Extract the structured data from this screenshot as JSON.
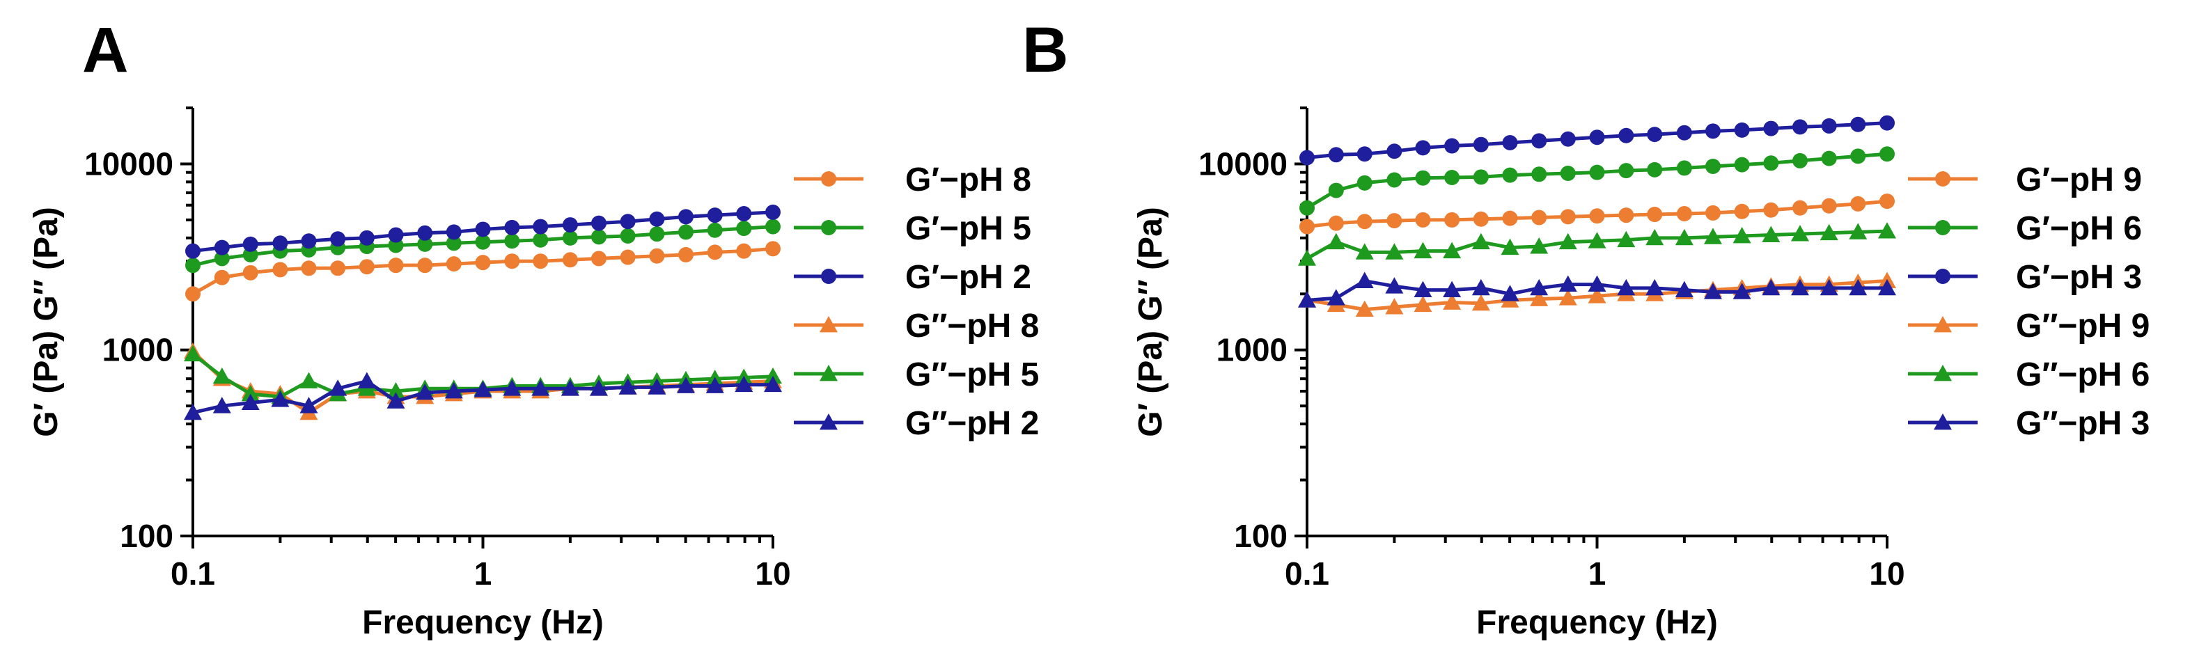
{
  "colors": {
    "orange": "#ED7D31",
    "green": "#1E9B1E",
    "navy": "#1F1F9E"
  },
  "chart_data": [
    {
      "panel": "A",
      "type": "line",
      "xlabel": "Frequency (Hz)",
      "ylabel": "G′ (Pa) G″ (Pa)",
      "xscale": "log",
      "yscale": "log",
      "xlim": [
        0.1,
        10
      ],
      "ylim": [
        100,
        20000
      ],
      "xticks": [
        {
          "v": 0.1,
          "label": "0.1"
        },
        {
          "v": 1,
          "label": "1"
        },
        {
          "v": 10,
          "label": "10"
        }
      ],
      "yticks": [
        {
          "v": 100,
          "label": "100"
        },
        {
          "v": 1000,
          "label": "1000"
        },
        {
          "v": 10000,
          "label": "10000"
        }
      ],
      "legend_position": "right",
      "x": [
        0.1,
        0.126,
        0.158,
        0.2,
        0.251,
        0.316,
        0.398,
        0.501,
        0.631,
        0.794,
        1,
        1.26,
        1.58,
        2,
        2.51,
        3.16,
        3.98,
        5.01,
        6.31,
        7.94,
        10
      ],
      "series": [
        {
          "name": "G′−pH 8",
          "color": "orange",
          "marker": "circle",
          "values": [
            2000,
            2450,
            2600,
            2700,
            2750,
            2750,
            2800,
            2850,
            2850,
            2900,
            2950,
            3000,
            3000,
            3050,
            3100,
            3150,
            3200,
            3250,
            3350,
            3400,
            3500
          ]
        },
        {
          "name": "G′−pH 5",
          "color": "green",
          "marker": "circle",
          "values": [
            2850,
            3100,
            3250,
            3400,
            3450,
            3550,
            3600,
            3650,
            3700,
            3750,
            3800,
            3850,
            3900,
            4000,
            4050,
            4100,
            4200,
            4300,
            4400,
            4500,
            4600
          ]
        },
        {
          "name": "G′−pH 2",
          "color": "navy",
          "marker": "circle",
          "values": [
            3400,
            3550,
            3700,
            3750,
            3850,
            3950,
            4000,
            4150,
            4250,
            4300,
            4450,
            4550,
            4600,
            4700,
            4800,
            4900,
            5050,
            5200,
            5300,
            5400,
            5500
          ]
        },
        {
          "name": "G″−pH 8",
          "color": "orange",
          "marker": "triangle",
          "values": [
            980,
            700,
            600,
            580,
            460,
            580,
            600,
            560,
            560,
            580,
            600,
            600,
            600,
            620,
            620,
            630,
            640,
            650,
            660,
            670,
            680
          ]
        },
        {
          "name": "G″−pH 5",
          "color": "green",
          "marker": "triangle",
          "values": [
            950,
            720,
            580,
            560,
            680,
            580,
            620,
            600,
            620,
            620,
            620,
            640,
            640,
            640,
            660,
            670,
            680,
            690,
            700,
            710,
            720
          ]
        },
        {
          "name": "G″−pH 2",
          "color": "navy",
          "marker": "triangle",
          "values": [
            460,
            500,
            520,
            540,
            500,
            620,
            680,
            530,
            590,
            600,
            610,
            620,
            620,
            620,
            620,
            630,
            630,
            640,
            640,
            650,
            650
          ]
        }
      ]
    },
    {
      "panel": "B",
      "type": "line",
      "xlabel": "Frequency (Hz)",
      "ylabel": "G′ (Pa) G″ (Pa)",
      "xscale": "log",
      "yscale": "log",
      "xlim": [
        0.1,
        10
      ],
      "ylim": [
        100,
        20000
      ],
      "xticks": [
        {
          "v": 0.1,
          "label": "0.1"
        },
        {
          "v": 1,
          "label": "1"
        },
        {
          "v": 10,
          "label": "10"
        }
      ],
      "yticks": [
        {
          "v": 100,
          "label": "100"
        },
        {
          "v": 1000,
          "label": "1000"
        },
        {
          "v": 10000,
          "label": "10000"
        }
      ],
      "legend_position": "right",
      "x": [
        0.1,
        0.126,
        0.158,
        0.2,
        0.251,
        0.316,
        0.398,
        0.501,
        0.631,
        0.794,
        1,
        1.26,
        1.58,
        2,
        2.51,
        3.16,
        3.98,
        5.01,
        6.31,
        7.94,
        10
      ],
      "series": [
        {
          "name": "G′−pH 9",
          "color": "orange",
          "marker": "circle",
          "values": [
            4600,
            4800,
            4900,
            4950,
            5000,
            5000,
            5050,
            5100,
            5150,
            5200,
            5250,
            5300,
            5350,
            5400,
            5450,
            5550,
            5650,
            5800,
            5950,
            6100,
            6300
          ]
        },
        {
          "name": "G′−pH 6",
          "color": "green",
          "marker": "circle",
          "values": [
            5800,
            7200,
            7900,
            8200,
            8400,
            8450,
            8500,
            8700,
            8800,
            8900,
            9000,
            9200,
            9300,
            9500,
            9700,
            9900,
            10100,
            10400,
            10700,
            11000,
            11300
          ]
        },
        {
          "name": "G′−pH 3",
          "color": "navy",
          "marker": "circle",
          "values": [
            10800,
            11200,
            11300,
            11700,
            12200,
            12500,
            12700,
            13000,
            13300,
            13600,
            13900,
            14200,
            14400,
            14700,
            15000,
            15200,
            15500,
            15800,
            16000,
            16300,
            16600
          ]
        },
        {
          "name": "G″−pH 9",
          "color": "orange",
          "marker": "triangle",
          "values": [
            1850,
            1750,
            1650,
            1700,
            1750,
            1800,
            1780,
            1850,
            1880,
            1900,
            1950,
            2000,
            2000,
            2050,
            2100,
            2150,
            2200,
            2250,
            2250,
            2300,
            2350
          ]
        },
        {
          "name": "G″−pH 6",
          "color": "green",
          "marker": "triangle",
          "values": [
            3100,
            3800,
            3350,
            3350,
            3400,
            3400,
            3800,
            3550,
            3600,
            3800,
            3850,
            3900,
            4000,
            4000,
            4050,
            4100,
            4150,
            4200,
            4250,
            4300,
            4350
          ]
        },
        {
          "name": "G″−pH 3",
          "color": "navy",
          "marker": "triangle",
          "values": [
            1850,
            1900,
            2350,
            2200,
            2100,
            2100,
            2150,
            2000,
            2150,
            2250,
            2250,
            2150,
            2150,
            2100,
            2050,
            2050,
            2150,
            2150,
            2150,
            2150,
            2150
          ]
        }
      ]
    }
  ]
}
